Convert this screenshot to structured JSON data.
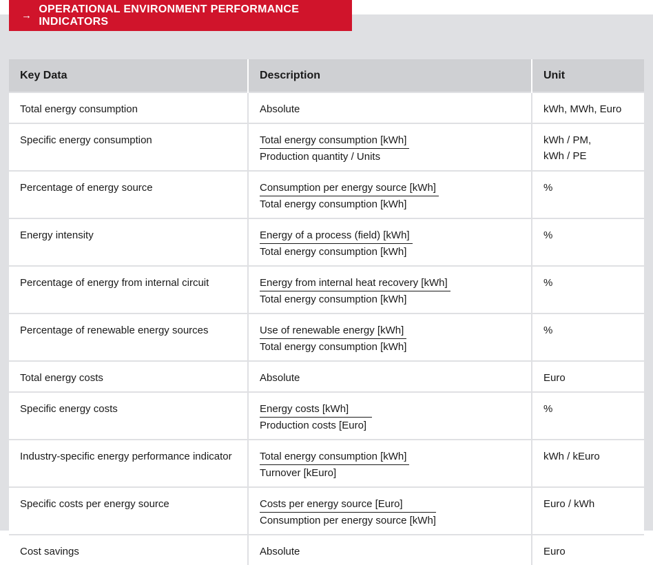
{
  "title": {
    "arrow": "→",
    "text": "OPERATIONAL ENVIRONMENT PERFORMANCE INDICATORS"
  },
  "colors": {
    "accent": "#d0142b",
    "panel": "#dfe0e3",
    "header": "#cfd0d3"
  },
  "table": {
    "headers": [
      "Key Data",
      "Description",
      "Unit"
    ],
    "rows": [
      {
        "key": "Total energy consumption",
        "desc": "Absolute",
        "unit": "kWh, MWh, Euro"
      },
      {
        "key": "Specific energy consumption",
        "num": "Total energy consumption [kWh]",
        "den": "Production quantity / Units",
        "unit": "kWh / PM,",
        "unit2": "kWh / PE"
      },
      {
        "key": "Percentage of energy source",
        "num": "Consumption per energy source [kWh]",
        "den": "Total energy consumption [kWh]",
        "unit": "%"
      },
      {
        "key": "Energy intensity",
        "num": "Energy of a process (field) [kWh]",
        "den": "Total energy consumption [kWh]",
        "unit": "%"
      },
      {
        "key": "Percentage of energy from internal circuit",
        "num": "Energy from internal heat recovery [kWh]",
        "den": "Total energy consumption [kWh]",
        "unit": "%"
      },
      {
        "key": "Percentage of renewable energy sources",
        "num": "Use of renewable energy [kWh]",
        "den": "Total energy consumption [kWh]",
        "unit": "%"
      },
      {
        "key": "Total energy costs",
        "desc": "Absolute",
        "unit": "Euro"
      },
      {
        "key": "Specific energy costs",
        "num": "Energy costs [kWh]",
        "den": "Production costs [Euro]",
        "unit": "%"
      },
      {
        "key": "Industry-specific energy performance indicator",
        "num": "Total energy consumption [kWh]",
        "den": "Turnover [kEuro]",
        "unit": "kWh / kEuro"
      },
      {
        "key": "Specific costs per energy source",
        "num": "Costs per energy source [Euro]",
        "den": "Consumption per energy source [kWh]",
        "unit": "Euro / kWh"
      },
      {
        "key": "Cost savings",
        "desc": "Absolute",
        "unit": "Euro"
      }
    ]
  }
}
